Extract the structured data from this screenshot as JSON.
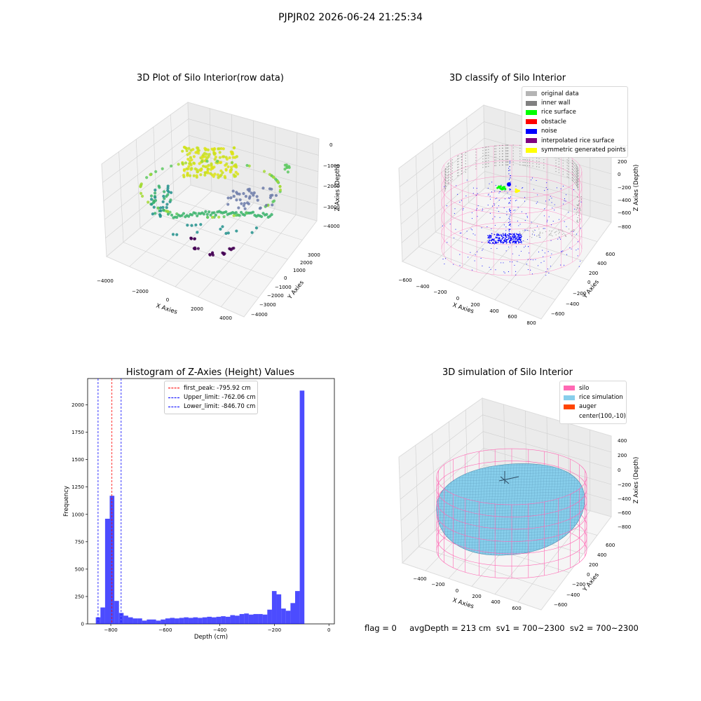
{
  "suptitle": "PJPJR02 2026-06-24 21:25:34",
  "panels": {
    "raw": {
      "title": "3D Plot of Silo Interior(row data)",
      "xlabel": "X Axies",
      "ylabel": "Y Axies",
      "zlabel": "Z Axies (Depth)",
      "xticks": [
        "−4000",
        "−2000",
        "0",
        "2000",
        "4000"
      ],
      "yticks": [
        "−4000",
        "−3000",
        "−2000",
        "−1000",
        "0",
        "1000",
        "2000",
        "3000"
      ],
      "zticks": [
        "0",
        "−1000",
        "−2000",
        "−3000",
        "−4000"
      ]
    },
    "classify": {
      "title": "3D classify of Silo Interior",
      "xlabel": "X Axies",
      "ylabel": "Y Axies",
      "zlabel": "Z Axies (Depth)",
      "xticks": [
        "−600",
        "−400",
        "−200",
        "0",
        "200",
        "400",
        "600",
        "800"
      ],
      "yticks": [
        "−600",
        "−400",
        "−200",
        "0",
        "200",
        "400",
        "600"
      ],
      "zticks": [
        "200",
        "0",
        "−200",
        "−400",
        "−600",
        "−800"
      ],
      "ztick_top": "200",
      "legend": [
        {
          "label": "original data",
          "color": "#b4b4b4"
        },
        {
          "label": "inner wall",
          "color": "#808080"
        },
        {
          "label": "rice surface",
          "color": "#00ff00"
        },
        {
          "label": "obstacle",
          "color": "#ff0000"
        },
        {
          "label": "noise",
          "color": "#0000ff"
        },
        {
          "label": "interpolated rice surface",
          "color": "#800080"
        },
        {
          "label": "symmetric generated points",
          "color": "#ffff00"
        }
      ]
    },
    "histogram": {
      "title": "Histogram of Z-Axies (Height) Values",
      "xlabel": "Depth (cm)",
      "ylabel": "Frequency",
      "legend": [
        {
          "label": "first_peak: -795.92 cm",
          "color": "#ff0000"
        },
        {
          "label": "Upper_limit: -762.06 cm",
          "color": "#0000ff"
        },
        {
          "label": "Lower_limit: -846.70 cm",
          "color": "#0000ff"
        }
      ]
    },
    "simulation": {
      "title": "3D simulation of Silo Interior",
      "xlabel": "X Axies",
      "ylabel": "Y Axies",
      "zlabel": "Z Axies (Depth)",
      "xticks": [
        "−400",
        "−200",
        "0",
        "200",
        "400",
        "600"
      ],
      "yticks": [
        "−600",
        "−400",
        "−200",
        "0",
        "200",
        "400",
        "600"
      ],
      "zticks": [
        "400",
        "200",
        "0",
        "−200",
        "−400",
        "−600",
        "−800"
      ],
      "legend": [
        {
          "label": "silo",
          "color": "#ff69b4"
        },
        {
          "label": "rice simulation",
          "color": "#87ceeb"
        },
        {
          "label": "auger",
          "color": "#ff4500"
        },
        {
          "label": "center(100,-10)",
          "color": ""
        }
      ]
    }
  },
  "footer": {
    "text": "flag = 0     avgDepth = 213 cm  sv1 = 700~2300  sv2 = 700~2300"
  },
  "chart_data": [
    {
      "type": "scatter",
      "title": "3D Plot of Silo Interior(row data)",
      "xlabel": "X Axies",
      "ylabel": "Y Axies",
      "zlabel": "Z Axies (Depth)",
      "xlim": [
        -4500,
        4500
      ],
      "ylim": [
        -4500,
        3500
      ],
      "zlim": [
        -4500,
        0
      ],
      "colormap": "viridis (by depth)",
      "grid": true
    },
    {
      "type": "scatter",
      "title": "3D classify of Silo Interior",
      "xlabel": "X Axies",
      "ylabel": "Y Axies",
      "zlabel": "Z Axies (Depth)",
      "xlim": [
        -600,
        800
      ],
      "ylim": [
        -650,
        650
      ],
      "zlim": [
        -900,
        300
      ],
      "series": [
        {
          "name": "original data"
        },
        {
          "name": "inner wall"
        },
        {
          "name": "rice surface"
        },
        {
          "name": "obstacle"
        },
        {
          "name": "noise"
        },
        {
          "name": "interpolated rice surface"
        },
        {
          "name": "symmetric generated points"
        }
      ],
      "legend_position": "top-right",
      "grid": true
    },
    {
      "type": "bar",
      "title": "Histogram of Z-Axies (Height) Values",
      "xlabel": "Depth (cm)",
      "ylabel": "Frequency",
      "xlim": [
        -885,
        20
      ],
      "ylim": [
        0,
        2240
      ],
      "xticks": [
        -800,
        -600,
        -400,
        -200,
        0
      ],
      "yticks": [
        0,
        250,
        500,
        750,
        1000,
        1250,
        1500,
        1750,
        2000
      ],
      "bin_width": 17,
      "bin_start": -855,
      "values": [
        60,
        150,
        960,
        1170,
        210,
        100,
        75,
        60,
        50,
        50,
        30,
        40,
        40,
        30,
        40,
        50,
        55,
        50,
        55,
        60,
        55,
        60,
        55,
        60,
        65,
        60,
        65,
        70,
        65,
        80,
        75,
        90,
        95,
        85,
        90,
        90,
        85,
        130,
        300,
        270,
        140,
        120,
        190,
        300,
        2130
      ],
      "color": "#0000ff",
      "vlines": [
        {
          "name": "first_peak: -795.92 cm",
          "x": -795.92,
          "color": "#ff0000"
        },
        {
          "name": "Upper_limit: -762.06 cm",
          "x": -762.06,
          "color": "#0000ff"
        },
        {
          "name": "Lower_limit: -846.70 cm",
          "x": -846.7,
          "color": "#0000ff"
        }
      ],
      "legend_position": "top-center"
    },
    {
      "type": "area",
      "title": "3D simulation of Silo Interior",
      "xlabel": "X Axies",
      "ylabel": "Y Axies",
      "zlabel": "Z Axies (Depth)",
      "xlim": [
        -500,
        700
      ],
      "ylim": [
        -700,
        700
      ],
      "zlim": [
        -900,
        450
      ],
      "series": [
        {
          "name": "silo"
        },
        {
          "name": "rice simulation"
        },
        {
          "name": "auger"
        },
        {
          "name": "center(100,-10)"
        }
      ],
      "legend_position": "top-right",
      "grid": true
    }
  ]
}
